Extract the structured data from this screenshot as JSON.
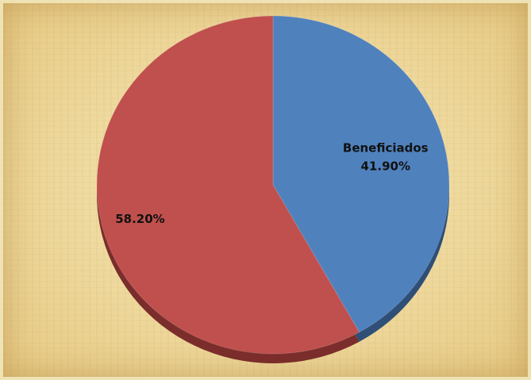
{
  "chart_data": {
    "type": "pie",
    "title": "",
    "slices": [
      {
        "name": "Beneficiados",
        "value": 41.9,
        "label": "41.90%",
        "color": "#4f81bd",
        "shadow": "#2f4f76"
      },
      {
        "name": "",
        "value": 58.2,
        "label": "58.20%",
        "color": "#c0504d",
        "shadow": "#7a2d2b"
      }
    ],
    "start": "12 o'clock",
    "direction": "clockwise",
    "style": "3d-tilted",
    "legend": "none"
  }
}
